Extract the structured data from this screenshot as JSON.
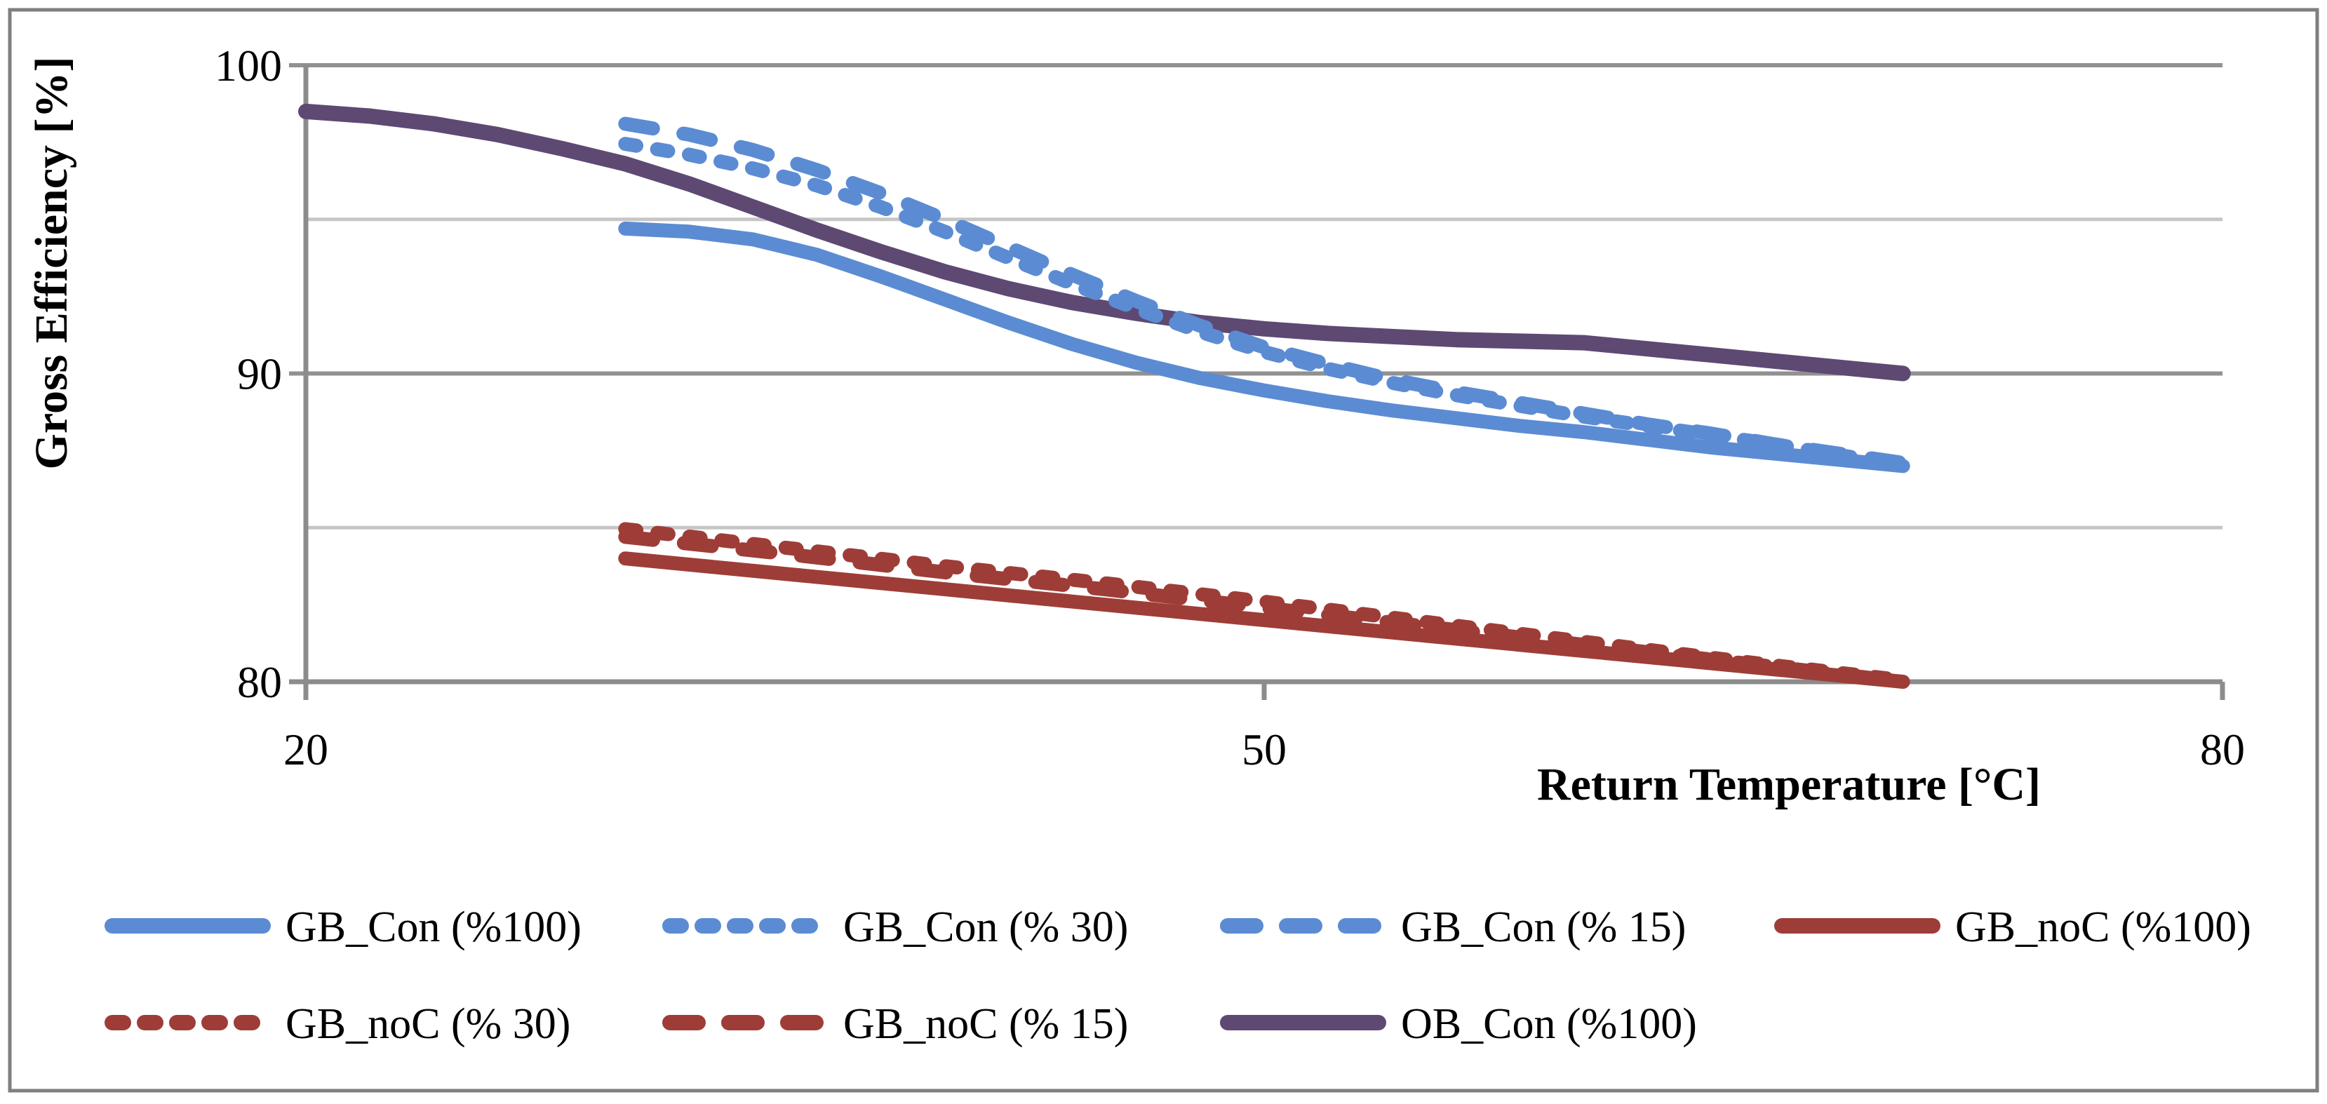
{
  "figure": {
    "background": "#ffffff",
    "border_color": "#7f7f7f"
  },
  "chart_data": {
    "type": "line",
    "title": "",
    "xlabel": "Return Temperature [°C]",
    "ylabel": "Gross Efficiency [%]",
    "xlim": [
      20,
      80
    ],
    "ylim": [
      80,
      100
    ],
    "x_ticks": [
      20,
      50,
      80
    ],
    "y_ticks": [
      100,
      90,
      80
    ],
    "major_gridlines_y": [
      100,
      90
    ],
    "minor_gridlines_y": [
      95,
      85
    ],
    "grid": true,
    "legend_position": "bottom",
    "axis_color": "#8c8c8c",
    "major_grid_color": "#919191",
    "minor_grid_color": "#c6c6c6",
    "series": [
      {
        "name": "GB_Con (%100)",
        "color": "#5b8cd3",
        "style": "solid",
        "points": [
          [
            30,
            94.7
          ],
          [
            32,
            94.6
          ],
          [
            34,
            94.35
          ],
          [
            36,
            93.85
          ],
          [
            38,
            93.15
          ],
          [
            40,
            92.4
          ],
          [
            42,
            91.65
          ],
          [
            44,
            90.95
          ],
          [
            46,
            90.35
          ],
          [
            48,
            89.85
          ],
          [
            50,
            89.45
          ],
          [
            52,
            89.1
          ],
          [
            54,
            88.8
          ],
          [
            56,
            88.55
          ],
          [
            58,
            88.3
          ],
          [
            60,
            88.1
          ],
          [
            62,
            87.85
          ],
          [
            64,
            87.6
          ],
          [
            66,
            87.4
          ],
          [
            68,
            87.2
          ],
          [
            70,
            87.0
          ]
        ]
      },
      {
        "name": "GB_Con (% 30)",
        "color": "#5b8cd3",
        "style": "dash-small",
        "points": [
          [
            30,
            97.45
          ],
          [
            32,
            97.1
          ],
          [
            34,
            96.65
          ],
          [
            36,
            96.1
          ],
          [
            38,
            95.4
          ],
          [
            40,
            94.6
          ],
          [
            42,
            93.75
          ],
          [
            44,
            92.9
          ],
          [
            46,
            92.1
          ],
          [
            48,
            91.35
          ],
          [
            50,
            90.7
          ],
          [
            52,
            90.15
          ],
          [
            54,
            89.7
          ],
          [
            56,
            89.3
          ],
          [
            58,
            88.95
          ],
          [
            60,
            88.6
          ],
          [
            62,
            88.3
          ],
          [
            64,
            88.0
          ],
          [
            66,
            87.7
          ],
          [
            68,
            87.35
          ],
          [
            70,
            87.05
          ]
        ]
      },
      {
        "name": "GB_Con (% 15)",
        "color": "#5b8cd3",
        "style": "dash-large",
        "points": [
          [
            30,
            98.1
          ],
          [
            32,
            97.75
          ],
          [
            34,
            97.25
          ],
          [
            36,
            96.6
          ],
          [
            38,
            95.85
          ],
          [
            40,
            95.0
          ],
          [
            42,
            94.1
          ],
          [
            44,
            93.2
          ],
          [
            46,
            92.35
          ],
          [
            48,
            91.55
          ],
          [
            50,
            90.85
          ],
          [
            52,
            90.3
          ],
          [
            54,
            89.8
          ],
          [
            56,
            89.4
          ],
          [
            58,
            89.05
          ],
          [
            60,
            88.7
          ],
          [
            62,
            88.35
          ],
          [
            64,
            88.05
          ],
          [
            66,
            87.7
          ],
          [
            68,
            87.4
          ],
          [
            70,
            87.1
          ]
        ]
      },
      {
        "name": "GB_noC (%100)",
        "color": "#9e3d38",
        "style": "solid",
        "points": [
          [
            30,
            84.0
          ],
          [
            35,
            83.5
          ],
          [
            40,
            83.0
          ],
          [
            45,
            82.5
          ],
          [
            50,
            82.0
          ],
          [
            55,
            81.5
          ],
          [
            60,
            81.0
          ],
          [
            65,
            80.5
          ],
          [
            70,
            80.0
          ]
        ]
      },
      {
        "name": "GB_noC (% 30)",
        "color": "#9e3d38",
        "style": "dash-small",
        "points": [
          [
            30,
            84.95
          ],
          [
            35,
            84.35
          ],
          [
            40,
            83.75
          ],
          [
            45,
            83.2
          ],
          [
            50,
            82.6
          ],
          [
            55,
            81.95
          ],
          [
            60,
            81.3
          ],
          [
            65,
            80.65
          ],
          [
            70,
            80.05
          ]
        ]
      },
      {
        "name": "GB_noC (% 15)",
        "color": "#9e3d38",
        "style": "dash-large",
        "points": [
          [
            30,
            84.7
          ],
          [
            35,
            84.15
          ],
          [
            40,
            83.55
          ],
          [
            45,
            83.0
          ],
          [
            50,
            82.4
          ],
          [
            55,
            81.8
          ],
          [
            60,
            81.2
          ],
          [
            65,
            80.6
          ],
          [
            70,
            80.0
          ]
        ]
      },
      {
        "name": "OB_Con (%100)",
        "color": "#5e4973",
        "style": "solid",
        "points": [
          [
            20,
            98.5
          ],
          [
            22,
            98.35
          ],
          [
            24,
            98.1
          ],
          [
            26,
            97.75
          ],
          [
            28,
            97.3
          ],
          [
            30,
            96.8
          ],
          [
            32,
            96.15
          ],
          [
            34,
            95.4
          ],
          [
            36,
            94.65
          ],
          [
            38,
            93.95
          ],
          [
            40,
            93.3
          ],
          [
            42,
            92.75
          ],
          [
            44,
            92.3
          ],
          [
            46,
            91.95
          ],
          [
            48,
            91.65
          ],
          [
            50,
            91.45
          ],
          [
            52,
            91.3
          ],
          [
            54,
            91.2
          ],
          [
            56,
            91.1
          ],
          [
            58,
            91.05
          ],
          [
            60,
            91.0
          ],
          [
            62,
            90.8
          ],
          [
            64,
            90.6
          ],
          [
            66,
            90.4
          ],
          [
            68,
            90.2
          ],
          [
            70,
            90.0
          ]
        ]
      }
    ],
    "legend_rows": [
      [
        "GB_Con (%100)",
        "GB_Con (% 30)",
        "GB_Con (% 15)",
        "GB_noC (%100)"
      ],
      [
        "GB_noC (% 30)",
        "GB_noC (% 15)",
        "OB_Con (%100)"
      ]
    ]
  }
}
